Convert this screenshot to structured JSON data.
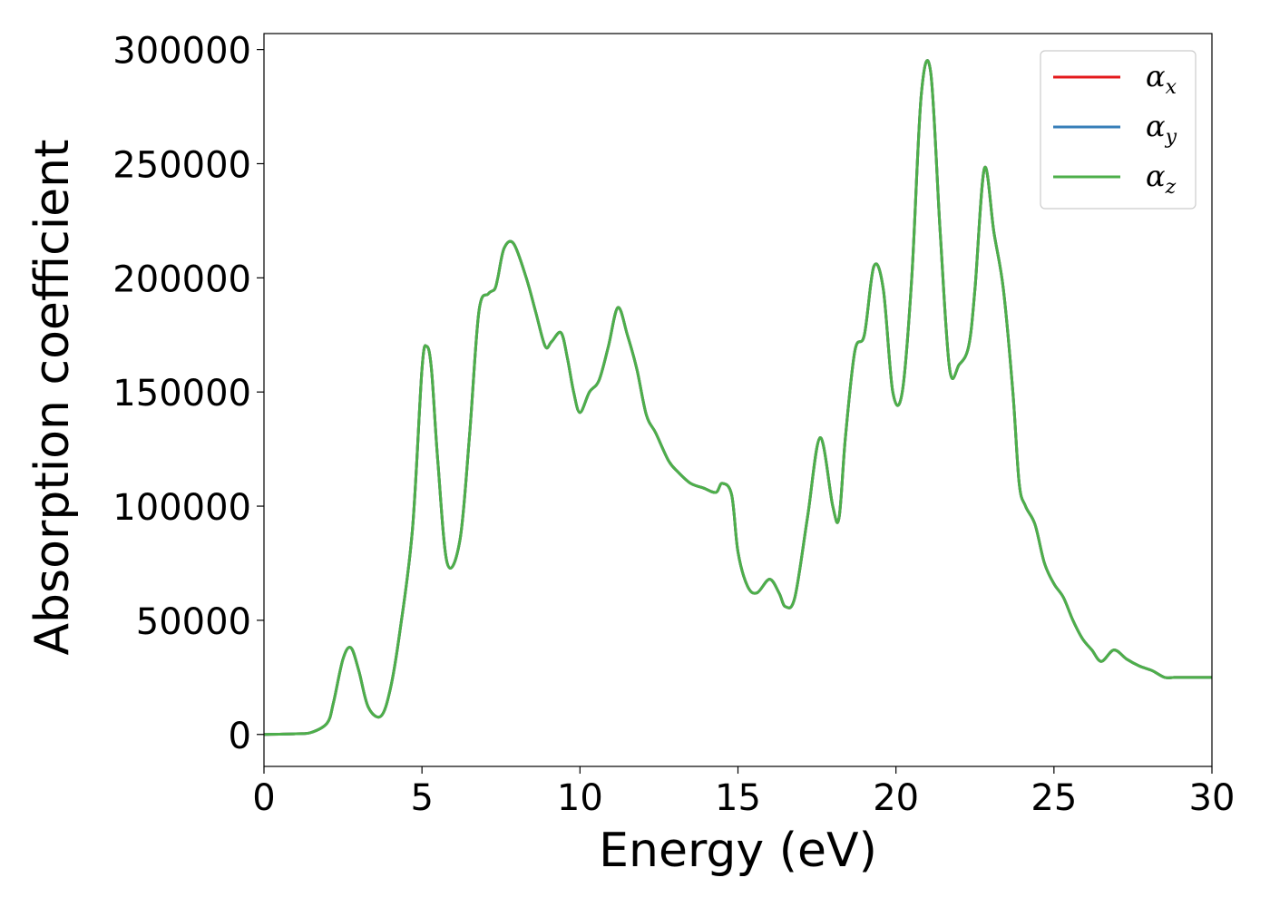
{
  "chart_data": {
    "type": "line",
    "title": "",
    "xlabel": "Energy (eV)",
    "ylabel": "Absorption coefficient",
    "xlim": [
      0,
      30
    ],
    "ylim": [
      -14000,
      307000
    ],
    "xticks": [
      0,
      5,
      10,
      15,
      20,
      25,
      30
    ],
    "yticks": [
      0,
      50000,
      100000,
      150000,
      200000,
      250000,
      300000
    ],
    "grid": false,
    "legend_position": "top-right",
    "x": [
      0,
      1,
      1.5,
      2,
      2.2,
      2.5,
      2.75,
      3,
      3.3,
      3.7,
      4,
      4.3,
      4.7,
      5,
      5.15,
      5.3,
      5.5,
      5.8,
      6.2,
      6.5,
      6.8,
      7.1,
      7.3,
      7.4,
      7.6,
      7.9,
      8.3,
      8.6,
      8.9,
      9.1,
      9.4,
      9.6,
      9.8,
      10,
      10.3,
      10.6,
      10.9,
      11.2,
      11.5,
      11.8,
      12.1,
      12.4,
      12.8,
      13.1,
      13.5,
      13.9,
      14.3,
      14.5,
      14.8,
      15,
      15.3,
      15.6,
      16,
      16.3,
      16.5,
      16.8,
      17.2,
      17.6,
      18,
      18.2,
      18.4,
      18.7,
      19,
      19.3,
      19.6,
      19.9,
      20.2,
      20.5,
      20.8,
      21.1,
      21.4,
      21.7,
      22,
      22.3,
      22.5,
      22.8,
      23.1,
      23.4,
      23.7,
      23.9,
      24.1,
      24.4,
      24.7,
      25,
      25.3,
      25.6,
      25.9,
      26.2,
      26.5,
      26.9,
      27.3,
      27.7,
      28.1,
      28.5,
      28.8,
      29,
      29.3,
      29.6,
      30
    ],
    "series": [
      {
        "name": "αx",
        "color": "#e41a1c",
        "values": [
          0,
          300,
          900,
          5000,
          14000,
          33000,
          38000,
          28000,
          12000,
          8000,
          20000,
          45000,
          90000,
          160000,
          170000,
          160000,
          120000,
          75000,
          85000,
          130000,
          185000,
          193000,
          195000,
          200000,
          213000,
          215000,
          200000,
          185000,
          170000,
          172000,
          176000,
          165000,
          150000,
          141000,
          150000,
          155000,
          170000,
          187000,
          175000,
          160000,
          140000,
          132000,
          120000,
          115000,
          110000,
          108000,
          106000,
          110000,
          105000,
          80000,
          65000,
          62000,
          68000,
          62000,
          56000,
          60000,
          95000,
          130000,
          100000,
          95000,
          130000,
          168000,
          175000,
          205000,
          195000,
          150000,
          150000,
          200000,
          280000,
          290000,
          220000,
          160000,
          162000,
          170000,
          195000,
          248000,
          220000,
          195000,
          150000,
          110000,
          100000,
          92000,
          75000,
          66000,
          60000,
          50000,
          42000,
          37000,
          32000,
          37000,
          33000,
          30000,
          28000,
          25000,
          25000,
          25000,
          25000,
          25000,
          25000
        ],
        "values_note_omit": true
      },
      {
        "name": "αy",
        "color": "#377eb8",
        "values": [
          0,
          300,
          900,
          5000,
          14000,
          33000,
          38000,
          28000,
          12000,
          8000,
          20000,
          45000,
          90000,
          160000,
          170000,
          160000,
          120000,
          75000,
          85000,
          130000,
          185000,
          193000,
          195000,
          200000,
          213000,
          215000,
          200000,
          185000,
          170000,
          172000,
          176000,
          165000,
          150000,
          141000,
          150000,
          155000,
          170000,
          187000,
          175000,
          160000,
          140000,
          132000,
          120000,
          115000,
          110000,
          108000,
          106000,
          110000,
          105000,
          80000,
          65000,
          62000,
          68000,
          62000,
          56000,
          60000,
          95000,
          130000,
          100000,
          95000,
          130000,
          168000,
          175000,
          205000,
          195000,
          150000,
          150000,
          200000,
          280000,
          290000,
          220000,
          160000,
          162000,
          170000,
          195000,
          248000,
          220000,
          195000,
          150000,
          110000,
          100000,
          92000,
          75000,
          66000,
          60000,
          50000,
          42000,
          37000,
          32000,
          37000,
          33000,
          30000,
          28000,
          25000,
          25000,
          25000,
          25000,
          25000,
          25000
        ]
      },
      {
        "name": "αz",
        "color": "#4daf4a",
        "values": [
          0,
          300,
          900,
          5000,
          14000,
          33000,
          38000,
          28000,
          12000,
          8000,
          20000,
          45000,
          90000,
          160000,
          170000,
          160000,
          120000,
          75000,
          85000,
          130000,
          185000,
          193000,
          195000,
          200000,
          213000,
          215000,
          200000,
          185000,
          170000,
          172000,
          176000,
          165000,
          150000,
          141000,
          150000,
          155000,
          170000,
          187000,
          175000,
          160000,
          140000,
          132000,
          120000,
          115000,
          110000,
          108000,
          106000,
          110000,
          105000,
          80000,
          65000,
          62000,
          68000,
          62000,
          56000,
          60000,
          95000,
          130000,
          100000,
          95000,
          130000,
          168000,
          175000,
          205000,
          195000,
          150000,
          150000,
          200000,
          280000,
          290000,
          220000,
          160000,
          162000,
          170000,
          195000,
          248000,
          220000,
          195000,
          150000,
          110000,
          100000,
          92000,
          75000,
          66000,
          60000,
          50000,
          42000,
          37000,
          32000,
          37000,
          33000,
          30000,
          28000,
          25000,
          25000,
          25000,
          25000,
          25000,
          25000
        ]
      }
    ],
    "legend": [
      {
        "symbol": "α",
        "subscript": "x",
        "color": "#e41a1c"
      },
      {
        "symbol": "α",
        "subscript": "y",
        "color": "#377eb8"
      },
      {
        "symbol": "α",
        "subscript": "z",
        "color": "#4daf4a"
      }
    ]
  }
}
